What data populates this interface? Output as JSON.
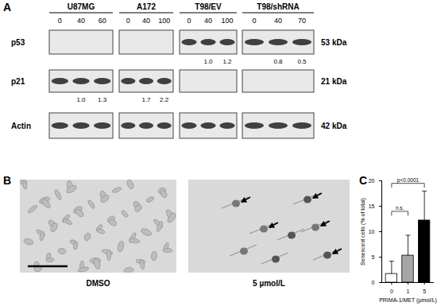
{
  "panel_A": {
    "label": "A",
    "groups": [
      {
        "name": "U87MG",
        "doses": [
          "0",
          "40",
          "60"
        ]
      },
      {
        "name": "A172",
        "doses": [
          "0",
          "40",
          "100"
        ]
      },
      {
        "name": "T98/EV",
        "doses": [
          "0",
          "40",
          "100"
        ]
      },
      {
        "name": "T98/shRNA",
        "doses": [
          "0",
          "40",
          "70"
        ]
      }
    ],
    "rows": [
      {
        "protein": "p53",
        "size": "53 kDa",
        "bands": [
          false,
          false,
          true,
          true
        ],
        "quantification": [
          [
            null,
            null,
            null
          ],
          [
            null,
            null,
            null
          ],
          [
            null,
            "1.0",
            "1.2"
          ],
          [
            null,
            "0.8",
            "0.5"
          ]
        ]
      },
      {
        "protein": "p21",
        "size": "21 kDa",
        "bands": [
          true,
          true,
          false,
          false
        ],
        "quantification": [
          [
            null,
            "1.0",
            "1.3"
          ],
          [
            null,
            "1.7",
            "2.2"
          ],
          [
            null,
            null,
            null
          ],
          [
            null,
            null,
            null
          ]
        ]
      },
      {
        "protein": "Actin",
        "size": "42 kDa",
        "bands": [
          true,
          true,
          true,
          true
        ],
        "quantification": [
          [
            null,
            null,
            null
          ],
          [
            null,
            null,
            null
          ],
          [
            null,
            null,
            null
          ],
          [
            null,
            null,
            null
          ]
        ]
      }
    ]
  },
  "panel_B": {
    "label": "B",
    "images": [
      {
        "caption": "DMSO"
      },
      {
        "caption": "5 µmol/L"
      }
    ]
  },
  "chart_data": {
    "type": "bar",
    "panel_label": "C",
    "x_label": "PRIMA-1/MET (µmol/L)",
    "y_label": "Senescent cells (% of total)",
    "categories": [
      "0",
      "1",
      "5"
    ],
    "values": [
      1.7,
      5.3,
      12.2
    ],
    "errors": [
      2.5,
      4.0,
      5.8
    ],
    "colors": [
      "#ffffff",
      "#a6a6a6",
      "#000000"
    ],
    "ylim": [
      0,
      20
    ],
    "yticks": [
      0,
      5,
      10,
      15,
      20
    ],
    "annotations": [
      {
        "text": "n.s.",
        "from": "0",
        "to": "1",
        "y": 14
      },
      {
        "text": "p<0.0001",
        "from": "0",
        "to": "5",
        "y": 19.5
      }
    ]
  }
}
